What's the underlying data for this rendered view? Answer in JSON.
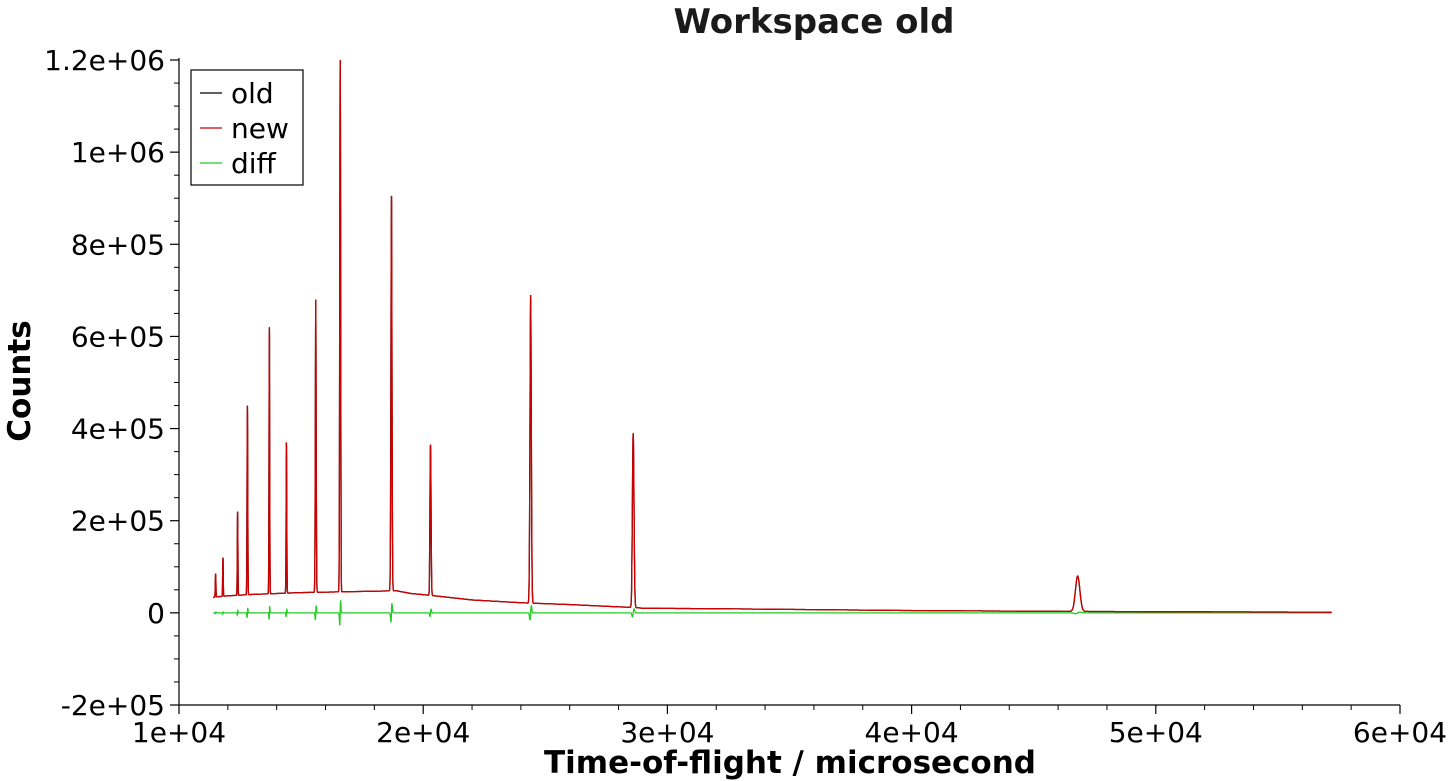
{
  "chart_data": {
    "type": "line",
    "title": "Workspace old",
    "xlabel": "Time-of-flight / microsecond",
    "ylabel": "Counts",
    "xlim": [
      10000,
      60000
    ],
    "ylim": [
      -200000,
      1200000
    ],
    "x_ticks": [
      10000,
      20000,
      30000,
      40000,
      50000,
      60000
    ],
    "x_tick_labels": [
      "1e+04",
      "2e+04",
      "3e+04",
      "4e+04",
      "5e+04",
      "6e+04"
    ],
    "y_ticks": [
      -200000,
      0,
      200000,
      400000,
      600000,
      800000,
      1000000,
      1200000
    ],
    "y_tick_labels": [
      "-2e+05",
      "0",
      "2e+05",
      "4e+05",
      "6e+05",
      "8e+05",
      "1e+06",
      "1.2e+06"
    ],
    "grid": false,
    "legend_position": "top-left",
    "x_range_data": [
      11400,
      57200
    ],
    "baseline": [
      [
        11400,
        34000
      ],
      [
        12000,
        37000
      ],
      [
        13000,
        40000
      ],
      [
        14000,
        42000
      ],
      [
        15000,
        44000
      ],
      [
        16000,
        45000
      ],
      [
        17000,
        46000
      ],
      [
        18000,
        47000
      ],
      [
        18900,
        48000
      ],
      [
        19500,
        42000
      ],
      [
        20300,
        38000
      ],
      [
        22000,
        28000
      ],
      [
        24000,
        22000
      ],
      [
        24400,
        21000
      ],
      [
        25000,
        20000
      ],
      [
        26000,
        18000
      ],
      [
        28000,
        13000
      ],
      [
        28600,
        12000
      ],
      [
        29000,
        10000
      ],
      [
        32000,
        9000
      ],
      [
        36000,
        7000
      ],
      [
        40000,
        5000
      ],
      [
        45000,
        3500
      ],
      [
        50000,
        2500
      ],
      [
        57200,
        1500
      ]
    ],
    "peaks": [
      {
        "x": 11500,
        "height": 85000,
        "width": 12
      },
      {
        "x": 11800,
        "height": 120000,
        "width": 12
      },
      {
        "x": 12400,
        "height": 220000,
        "width": 12
      },
      {
        "x": 12800,
        "height": 450000,
        "width": 14
      },
      {
        "x": 13700,
        "height": 620000,
        "width": 14
      },
      {
        "x": 14400,
        "height": 370000,
        "width": 14
      },
      {
        "x": 15600,
        "height": 680000,
        "width": 18
      },
      {
        "x": 16600,
        "height": 1200000,
        "width": 18
      },
      {
        "x": 18700,
        "height": 905000,
        "width": 22
      },
      {
        "x": 20300,
        "height": 365000,
        "width": 22
      },
      {
        "x": 24400,
        "height": 690000,
        "width": 28
      },
      {
        "x": 28600,
        "height": 390000,
        "width": 32
      },
      {
        "x": 46800,
        "height": 80000,
        "width": 90
      }
    ],
    "series": [
      {
        "name": "old",
        "color": "#000000"
      },
      {
        "name": "new",
        "color": "#cc0000"
      },
      {
        "name": "diff",
        "color": "#22cc22"
      }
    ]
  }
}
